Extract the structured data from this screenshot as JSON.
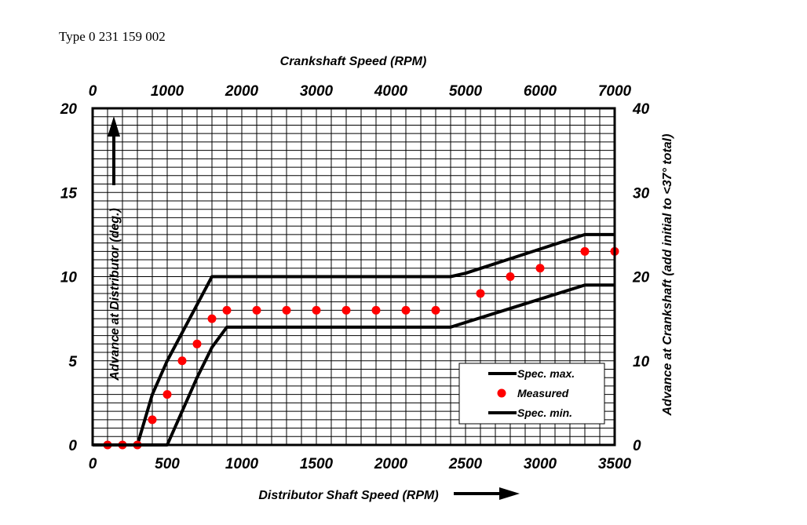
{
  "header": {
    "type_label": "Type 0 231 159 002"
  },
  "chart_data": {
    "type": "line",
    "title": "Type 0 231 159 002",
    "xlabel": "Distributor Shaft Speed (RPM)",
    "x2label": "Crankshaft Speed (RPM)",
    "ylabel": "Advance at Distributor (deg.)",
    "y2label": "Advance at Crankshaft (add initial to <37° total)",
    "xlim": [
      0,
      3500
    ],
    "ylim": [
      0,
      20
    ],
    "x2lim": [
      0,
      7000
    ],
    "y2lim": [
      0,
      40
    ],
    "xticks": [
      0,
      500,
      1000,
      1500,
      2000,
      2500,
      3000,
      3500
    ],
    "yticks": [
      0,
      5,
      10,
      15,
      20
    ],
    "x2ticks": [
      0,
      1000,
      2000,
      3000,
      4000,
      5000,
      6000,
      7000
    ],
    "y2ticks": [
      0,
      10,
      20,
      30,
      40
    ],
    "grid": true,
    "series": [
      {
        "name": "Spec. max.",
        "style": "line",
        "color": "#000000",
        "x": [
          0,
          300,
          400,
          500,
          800,
          2400,
          2500,
          3300,
          3500
        ],
        "y": [
          0,
          0,
          3,
          5,
          10,
          10,
          10.2,
          12.5,
          12.5
        ]
      },
      {
        "name": "Measured",
        "style": "scatter",
        "color": "#ff0000",
        "x": [
          100,
          200,
          300,
          400,
          500,
          600,
          700,
          800,
          900,
          1100,
          1300,
          1500,
          1700,
          1900,
          2100,
          2300,
          2600,
          2800,
          3000,
          3300,
          3500
        ],
        "y": [
          0,
          0,
          0,
          1.5,
          3,
          5,
          6,
          7.5,
          8,
          8,
          8,
          8,
          8,
          8,
          8,
          8,
          9,
          10,
          10.5,
          11.5,
          11.5
        ]
      },
      {
        "name": "Spec. min.",
        "style": "line",
        "color": "#000000",
        "x": [
          0,
          500,
          700,
          800,
          900,
          2400,
          3300,
          3500
        ],
        "y": [
          0,
          0,
          4,
          5.8,
          7,
          7,
          9.5,
          9.5
        ]
      }
    ],
    "legend_position": "bottom-right"
  }
}
